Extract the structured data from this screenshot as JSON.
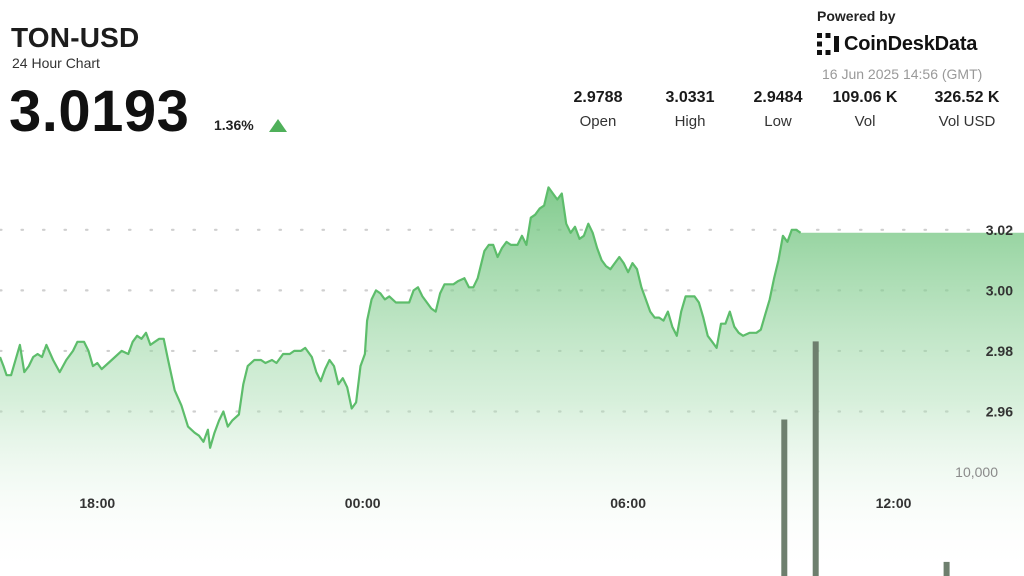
{
  "header": {
    "symbol": "TON-USD",
    "subtitle": "24 Hour Chart",
    "price": "3.0193",
    "change": "1.36%",
    "change_direction": "up",
    "up_color": "#4fb05a"
  },
  "branding": {
    "powered_by": "Powered by",
    "name": "CoinDeskData",
    "logo_icon": "coindesk-logo-icon",
    "timestamp": "16 Jun 2025 14:56 (GMT)"
  },
  "stats": [
    {
      "value": "2.9788",
      "label": "Open"
    },
    {
      "value": "3.0331",
      "label": "High"
    },
    {
      "value": "2.9484",
      "label": "Low"
    },
    {
      "value": "109.06 K",
      "label": "Vol"
    },
    {
      "value": "326.52 K",
      "label": "Vol USD"
    }
  ],
  "colors": {
    "line": "#5dbd6b",
    "fill_top": "#6cc27a",
    "volume": "#6e7f6e",
    "grid_dot": "#cfcfcf"
  },
  "chart_data": {
    "type": "area",
    "x_unit": "hours (GMT)",
    "x_ticks": [
      {
        "label": "18:00",
        "x": 18
      },
      {
        "label": "00:00",
        "x": 24
      },
      {
        "label": "06:00",
        "x": 30
      },
      {
        "label": "12:00",
        "x": 36
      }
    ],
    "y_ticks": [
      {
        "label": "3.02",
        "value": 3.02
      },
      {
        "label": "3.00",
        "value": 3.0
      },
      {
        "label": "2.98",
        "value": 2.98
      },
      {
        "label": "2.96",
        "value": 2.96
      }
    ],
    "ylim": [
      2.942,
      3.048
    ],
    "xlim": [
      15.8,
      38.95
    ],
    "price_series": [
      [
        15.8,
        2.978
      ],
      [
        15.88,
        2.975
      ],
      [
        15.95,
        2.972
      ],
      [
        16.05,
        2.972
      ],
      [
        16.15,
        2.977
      ],
      [
        16.25,
        2.982
      ],
      [
        16.35,
        2.973
      ],
      [
        16.45,
        2.975
      ],
      [
        16.55,
        2.978
      ],
      [
        16.65,
        2.979
      ],
      [
        16.75,
        2.978
      ],
      [
        16.85,
        2.982
      ],
      [
        17.0,
        2.977
      ],
      [
        17.15,
        2.973
      ],
      [
        17.3,
        2.977
      ],
      [
        17.45,
        2.98
      ],
      [
        17.55,
        2.983
      ],
      [
        17.7,
        2.983
      ],
      [
        17.8,
        2.98
      ],
      [
        17.9,
        2.975
      ],
      [
        18.0,
        2.976
      ],
      [
        18.1,
        2.974
      ],
      [
        18.25,
        2.976
      ],
      [
        18.4,
        2.978
      ],
      [
        18.55,
        2.98
      ],
      [
        18.7,
        2.979
      ],
      [
        18.8,
        2.983
      ],
      [
        18.9,
        2.985
      ],
      [
        19.0,
        2.984
      ],
      [
        19.1,
        2.986
      ],
      [
        19.2,
        2.982
      ],
      [
        19.3,
        2.983
      ],
      [
        19.4,
        2.984
      ],
      [
        19.5,
        2.984
      ],
      [
        19.6,
        2.977
      ],
      [
        19.75,
        2.967
      ],
      [
        19.9,
        2.962
      ],
      [
        20.05,
        2.955
      ],
      [
        20.2,
        2.953
      ],
      [
        20.3,
        2.952
      ],
      [
        20.4,
        2.95
      ],
      [
        20.5,
        2.954
      ],
      [
        20.55,
        2.948
      ],
      [
        20.65,
        2.953
      ],
      [
        20.75,
        2.957
      ],
      [
        20.85,
        2.96
      ],
      [
        20.95,
        2.955
      ],
      [
        21.05,
        2.957
      ],
      [
        21.2,
        2.959
      ],
      [
        21.3,
        2.969
      ],
      [
        21.4,
        2.975
      ],
      [
        21.55,
        2.977
      ],
      [
        21.7,
        2.977
      ],
      [
        21.8,
        2.976
      ],
      [
        21.95,
        2.977
      ],
      [
        22.05,
        2.976
      ],
      [
        22.2,
        2.979
      ],
      [
        22.35,
        2.979
      ],
      [
        22.45,
        2.98
      ],
      [
        22.6,
        2.98
      ],
      [
        22.7,
        2.981
      ],
      [
        22.85,
        2.978
      ],
      [
        22.95,
        2.973
      ],
      [
        23.05,
        2.97
      ],
      [
        23.15,
        2.974
      ],
      [
        23.25,
        2.977
      ],
      [
        23.35,
        2.975
      ],
      [
        23.45,
        2.969
      ],
      [
        23.55,
        2.971
      ],
      [
        23.65,
        2.968
      ],
      [
        23.75,
        2.961
      ],
      [
        23.85,
        2.963
      ],
      [
        23.95,
        2.975
      ],
      [
        24.05,
        2.979
      ],
      [
        24.1,
        2.99
      ],
      [
        24.2,
        2.997
      ],
      [
        24.3,
        3.0
      ],
      [
        24.4,
        2.999
      ],
      [
        24.5,
        2.997
      ],
      [
        24.6,
        2.998
      ],
      [
        24.75,
        2.996
      ],
      [
        24.9,
        2.996
      ],
      [
        25.05,
        2.996
      ],
      [
        25.15,
        3.0
      ],
      [
        25.25,
        3.001
      ],
      [
        25.35,
        2.998
      ],
      [
        25.45,
        2.996
      ],
      [
        25.55,
        2.994
      ],
      [
        25.65,
        2.993
      ],
      [
        25.75,
        2.999
      ],
      [
        25.85,
        3.002
      ],
      [
        25.95,
        3.002
      ],
      [
        26.05,
        3.002
      ],
      [
        26.15,
        3.003
      ],
      [
        26.3,
        3.004
      ],
      [
        26.4,
        3.001
      ],
      [
        26.5,
        3.001
      ],
      [
        26.6,
        3.004
      ],
      [
        26.75,
        3.013
      ],
      [
        26.85,
        3.015
      ],
      [
        26.95,
        3.015
      ],
      [
        27.05,
        3.011
      ],
      [
        27.15,
        3.014
      ],
      [
        27.25,
        3.016
      ],
      [
        27.35,
        3.015
      ],
      [
        27.5,
        3.015
      ],
      [
        27.6,
        3.018
      ],
      [
        27.7,
        3.015
      ],
      [
        27.8,
        3.024
      ],
      [
        27.9,
        3.025
      ],
      [
        28.0,
        3.027
      ],
      [
        28.1,
        3.028
      ],
      [
        28.2,
        3.034
      ],
      [
        28.3,
        3.032
      ],
      [
        28.4,
        3.03
      ],
      [
        28.5,
        3.032
      ],
      [
        28.6,
        3.022
      ],
      [
        28.7,
        3.019
      ],
      [
        28.8,
        3.021
      ],
      [
        28.9,
        3.017
      ],
      [
        29.0,
        3.018
      ],
      [
        29.1,
        3.022
      ],
      [
        29.2,
        3.019
      ],
      [
        29.3,
        3.014
      ],
      [
        29.4,
        3.01
      ],
      [
        29.5,
        3.008
      ],
      [
        29.6,
        3.007
      ],
      [
        29.7,
        3.009
      ],
      [
        29.8,
        3.011
      ],
      [
        29.9,
        3.009
      ],
      [
        30.0,
        3.006
      ],
      [
        30.1,
        3.009
      ],
      [
        30.2,
        3.007
      ],
      [
        30.3,
        3.001
      ],
      [
        30.4,
        2.997
      ],
      [
        30.5,
        2.993
      ],
      [
        30.6,
        2.991
      ],
      [
        30.7,
        2.991
      ],
      [
        30.8,
        2.99
      ],
      [
        30.9,
        2.993
      ],
      [
        31.0,
        2.988
      ],
      [
        31.1,
        2.985
      ],
      [
        31.2,
        2.993
      ],
      [
        31.3,
        2.998
      ],
      [
        31.4,
        2.998
      ],
      [
        31.5,
        2.998
      ],
      [
        31.6,
        2.996
      ],
      [
        31.7,
        2.991
      ],
      [
        31.8,
        2.985
      ],
      [
        31.9,
        2.983
      ],
      [
        32.0,
        2.981
      ],
      [
        32.1,
        2.989
      ],
      [
        32.2,
        2.989
      ],
      [
        32.3,
        2.993
      ],
      [
        32.4,
        2.988
      ],
      [
        32.5,
        2.986
      ],
      [
        32.6,
        2.985
      ],
      [
        32.75,
        2.986
      ],
      [
        32.9,
        2.986
      ],
      [
        33.0,
        2.987
      ],
      [
        33.1,
        2.992
      ],
      [
        33.2,
        2.997
      ],
      [
        33.3,
        3.004
      ],
      [
        33.4,
        3.01
      ],
      [
        33.5,
        3.018
      ],
      [
        33.6,
        3.016
      ],
      [
        33.7,
        3.02
      ],
      [
        33.8,
        3.02
      ],
      [
        33.9,
        3.019
      ]
    ],
    "volume_label": "10,000",
    "volume_scale_value": 10000,
    "volume_bars": [
      {
        "x": 33.53,
        "value": 10790
      },
      {
        "x": 34.24,
        "value": 16180
      },
      {
        "x": 37.2,
        "value": 970
      }
    ]
  }
}
